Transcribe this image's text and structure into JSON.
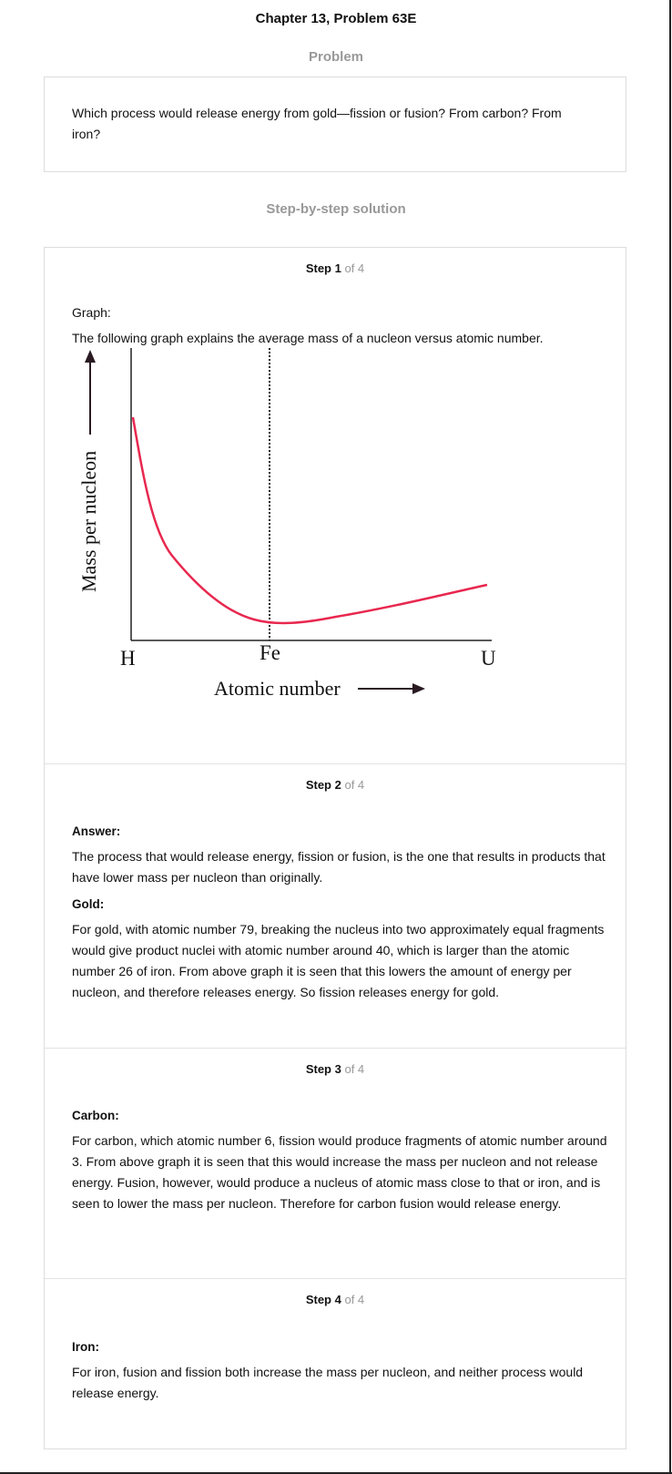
{
  "title": "Chapter 13, Problem 63E",
  "problem_heading": "Problem",
  "problem_text": "Which process would release energy from gold—fission or fusion? From carbon? From iron?",
  "solution_heading": "Step-by-step solution",
  "steps": [
    {
      "label": "Step 1",
      "of": "of 4",
      "graph_label": "Graph:",
      "intro": "The following graph explains the average mass of a nucleon versus atomic number.",
      "figure": {
        "ylabel": "Mass per nucleon",
        "xlabel": "Atomic number",
        "x_ticks": [
          "H",
          "Fe",
          "U"
        ],
        "curve_color": "#e8284f"
      }
    },
    {
      "label": "Step 2",
      "of": "of 4",
      "heading": "Answer:",
      "text": "The process that would release energy, fission or fusion, is the one that results in products that have lower mass per nucleon than originally.",
      "subheading": "Gold:",
      "text2": "For gold, with atomic number 79, breaking the nucleus into two approximately equal fragments would give product nuclei with atomic number around 40, which is larger than the atomic number 26 of iron. From above graph it is seen that this lowers the amount of energy per nucleon, and therefore releases energy. So fission releases energy for gold."
    },
    {
      "label": "Step 3",
      "of": "of 4",
      "heading": "Carbon:",
      "text": "For carbon, which atomic number 6, fission would produce fragments of atomic number around 3. From above graph it is seen that this would increase the mass per nucleon and not release energy. Fusion, however, would produce a nucleus of atomic mass close to that or iron, and is seen to lower the mass per nucleon. Therefore for carbon fusion would release energy."
    },
    {
      "label": "Step 4",
      "of": "of 4",
      "heading": "Iron:",
      "text": "For iron, fusion and fission both increase the mass per nucleon, and neither process would release energy."
    }
  ]
}
